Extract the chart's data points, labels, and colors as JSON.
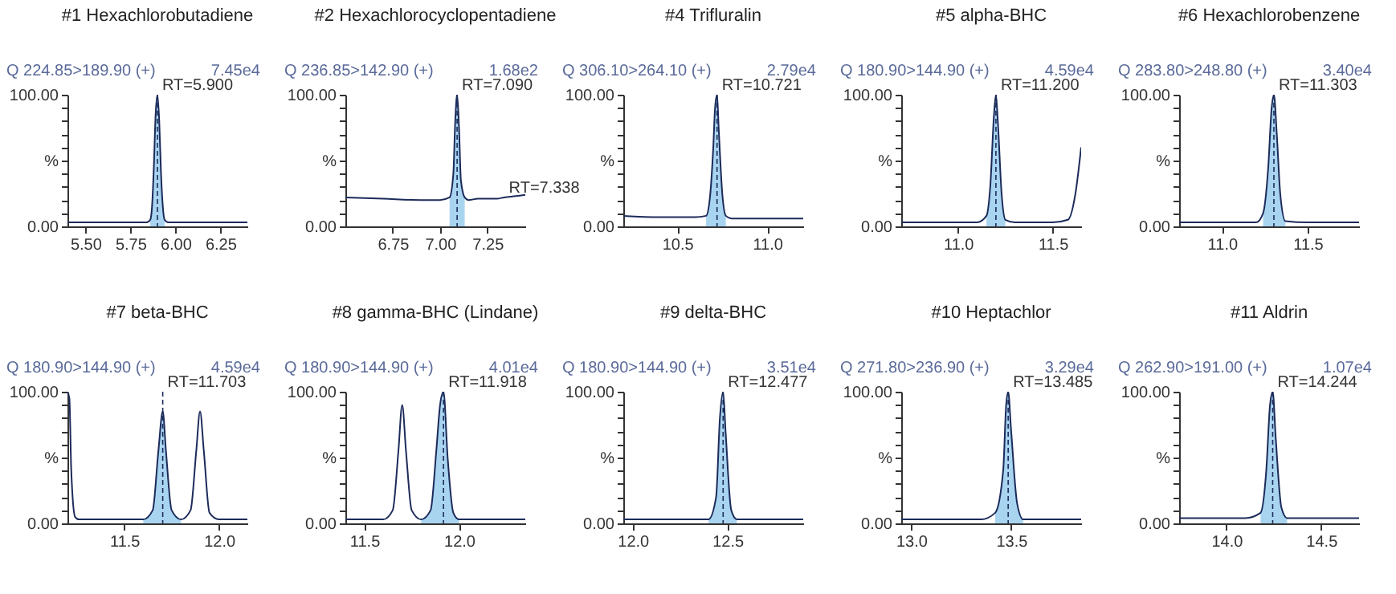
{
  "chart_data": [
    {
      "type": "line",
      "title": "#1 Hexachlorobutadiene",
      "subtitle": "Q 224.85>189.90 (+)",
      "annotations": [
        "7.45e4",
        {
          "text": "RT=5.900",
          "x": 5.9,
          "y": 100
        }
      ],
      "xlim": [
        5.4,
        6.4
      ],
      "xticks": [
        {
          "value": 5.5,
          "label": "5.50"
        },
        {
          "value": 5.75,
          "label": "5.75"
        },
        {
          "value": 6,
          "label": "6.00"
        },
        {
          "value": 6.25,
          "label": "6.25"
        }
      ],
      "ylim": [
        0,
        100
      ],
      "yticks": [
        {
          "value": 0,
          "label": "0.00"
        },
        {
          "value": 10,
          "label": null
        },
        {
          "value": 20,
          "label": null
        },
        {
          "value": 30,
          "label": null
        },
        {
          "value": 40,
          "label": null
        },
        {
          "value": 50,
          "label": "%"
        },
        {
          "value": 60,
          "label": null
        },
        {
          "value": 70,
          "label": null
        },
        {
          "value": 80,
          "label": null
        },
        {
          "value": 90,
          "label": null
        },
        {
          "value": 100,
          "label": "100.00"
        }
      ],
      "series": [
        {
          "type": "area",
          "color": "#a8d4f0",
          "x": [
            5.86,
            5.87,
            5.88,
            5.89,
            5.9,
            5.91,
            5.92,
            5.93,
            5.94
          ],
          "values": [
            5,
            15,
            45,
            85,
            100,
            80,
            40,
            15,
            5
          ]
        },
        {
          "color": "#1c2b5a",
          "x": [
            5.4,
            5.6,
            5.8,
            5.84,
            5.86,
            5.87,
            5.88,
            5.89,
            5.9,
            5.91,
            5.92,
            5.93,
            5.94,
            5.96,
            6.1,
            6.4
          ],
          "values": [
            3,
            3,
            3,
            3,
            5,
            15,
            45,
            85,
            100,
            80,
            40,
            15,
            5,
            3,
            3,
            3
          ]
        }
      ],
      "ref_lines": [
        {
          "axis": "x",
          "value": 5.9,
          "line_style": "dashed",
          "color": "#1c2b5a"
        }
      ]
    },
    {
      "type": "line",
      "title": "#2 Hexachlorocyclopentadiene",
      "subtitle": "Q 236.85>142.90 (+)",
      "annotations": [
        "1.68e2",
        {
          "text": "RT=7.090",
          "x": 7.09,
          "y": 100
        },
        {
          "text": "RT=7.338",
          "x": 7.338,
          "y": 22
        }
      ],
      "xlim": [
        6.5,
        7.45
      ],
      "xticks": [
        {
          "value": 6.75,
          "label": "6.75"
        },
        {
          "value": 7,
          "label": "7.00"
        },
        {
          "value": 7.25,
          "label": "7.25"
        }
      ],
      "ylim": [
        0,
        100
      ],
      "yticks": [
        {
          "value": 0,
          "label": "0.00"
        },
        {
          "value": 10,
          "label": null
        },
        {
          "value": 20,
          "label": null
        },
        {
          "value": 30,
          "label": null
        },
        {
          "value": 40,
          "label": null
        },
        {
          "value": 50,
          "label": "%"
        },
        {
          "value": 60,
          "label": null
        },
        {
          "value": 70,
          "label": null
        },
        {
          "value": 80,
          "label": null
        },
        {
          "value": 90,
          "label": null
        },
        {
          "value": 100,
          "label": "100.00"
        }
      ],
      "series": [
        {
          "type": "area",
          "color": "#a8d4f0",
          "x": [
            7.05,
            7.07,
            7.08,
            7.09,
            7.1,
            7.11,
            7.13
          ],
          "values": [
            22,
            40,
            80,
            100,
            75,
            35,
            22
          ]
        },
        {
          "color": "#1c2b5a",
          "x": [
            6.5,
            6.7,
            6.9,
            7.0,
            7.05,
            7.07,
            7.08,
            7.09,
            7.1,
            7.11,
            7.13,
            7.15,
            7.2,
            7.3,
            7.338,
            7.4,
            7.45
          ],
          "values": [
            22,
            21,
            20,
            20,
            22,
            40,
            80,
            100,
            75,
            35,
            22,
            20,
            21,
            21,
            22,
            23,
            24
          ]
        }
      ],
      "ref_lines": [
        {
          "axis": "x",
          "value": 7.09,
          "line_style": "dashed",
          "color": "#1c2b5a"
        }
      ]
    },
    {
      "type": "line",
      "title": "#4 Trifluralin",
      "subtitle": "Q 306.10>264.10 (+)",
      "annotations": [
        "2.79e4",
        {
          "text": "RT=10.721",
          "x": 10.721,
          "y": 100
        }
      ],
      "xlim": [
        10.2,
        11.2
      ],
      "xticks": [
        {
          "value": 10.5,
          "label": "10.5"
        },
        {
          "value": 11,
          "label": "11.0"
        }
      ],
      "ylim": [
        0,
        100
      ],
      "yticks": [
        {
          "value": 0,
          "label": "0.00"
        },
        {
          "value": 10,
          "label": null
        },
        {
          "value": 20,
          "label": null
        },
        {
          "value": 30,
          "label": null
        },
        {
          "value": 40,
          "label": null
        },
        {
          "value": 50,
          "label": "%"
        },
        {
          "value": 60,
          "label": null
        },
        {
          "value": 70,
          "label": null
        },
        {
          "value": 80,
          "label": null
        },
        {
          "value": 90,
          "label": null
        },
        {
          "value": 100,
          "label": "100.00"
        }
      ],
      "series": [
        {
          "type": "area",
          "color": "#a8d4f0",
          "x": [
            10.66,
            10.68,
            10.7,
            10.71,
            10.721,
            10.73,
            10.75,
            10.77
          ],
          "values": [
            8,
            20,
            60,
            90,
            100,
            75,
            25,
            8
          ]
        },
        {
          "color": "#1c2b5a",
          "x": [
            10.2,
            10.4,
            10.6,
            10.66,
            10.68,
            10.7,
            10.71,
            10.721,
            10.73,
            10.75,
            10.77,
            10.8,
            11.0,
            11.2
          ],
          "values": [
            8,
            7,
            7,
            8,
            20,
            60,
            90,
            100,
            75,
            25,
            8,
            6,
            6,
            6
          ]
        }
      ],
      "ref_lines": [
        {
          "axis": "x",
          "value": 10.721,
          "line_style": "dashed",
          "color": "#1c2b5a"
        }
      ]
    },
    {
      "type": "line",
      "title": "#5 alpha-BHC",
      "subtitle": "Q 180.90>144.90 (+)",
      "annotations": [
        "4.59e4",
        {
          "text": "RT=11.200",
          "x": 11.2,
          "y": 100
        }
      ],
      "xlim": [
        10.7,
        11.65
      ],
      "xticks": [
        {
          "value": 11,
          "label": "11.0"
        },
        {
          "value": 11.5,
          "label": "11.5"
        }
      ],
      "ylim": [
        0,
        100
      ],
      "yticks": [
        {
          "value": 0,
          "label": "0.00"
        },
        {
          "value": 10,
          "label": null
        },
        {
          "value": 20,
          "label": null
        },
        {
          "value": 30,
          "label": null
        },
        {
          "value": 40,
          "label": null
        },
        {
          "value": 50,
          "label": "%"
        },
        {
          "value": 60,
          "label": null
        },
        {
          "value": 70,
          "label": null
        },
        {
          "value": 80,
          "label": null
        },
        {
          "value": 90,
          "label": null
        },
        {
          "value": 100,
          "label": "100.00"
        }
      ],
      "series": [
        {
          "type": "area",
          "color": "#a8d4f0",
          "x": [
            11.15,
            11.17,
            11.19,
            11.2,
            11.21,
            11.23,
            11.25
          ],
          "values": [
            8,
            30,
            85,
            100,
            80,
            25,
            5
          ]
        },
        {
          "color": "#1c2b5a",
          "x": [
            10.7,
            11.0,
            11.1,
            11.15,
            11.17,
            11.19,
            11.2,
            11.21,
            11.23,
            11.25,
            11.3,
            11.5,
            11.58,
            11.62,
            11.65
          ],
          "values": [
            3,
            3,
            3,
            8,
            30,
            85,
            100,
            80,
            25,
            5,
            3,
            3,
            5,
            25,
            60
          ]
        }
      ],
      "ref_lines": [
        {
          "axis": "x",
          "value": 11.2,
          "line_style": "dashed",
          "color": "#1c2b5a"
        }
      ]
    },
    {
      "type": "line",
      "title": "#6 Hexachlorobenzene",
      "subtitle": "Q 283.80>248.80 (+)",
      "annotations": [
        "3.40e4",
        {
          "text": "RT=11.303",
          "x": 11.303,
          "y": 100
        }
      ],
      "xlim": [
        10.75,
        11.8
      ],
      "xticks": [
        {
          "value": 11,
          "label": "11.0"
        },
        {
          "value": 11.5,
          "label": "11.5"
        }
      ],
      "ylim": [
        0,
        100
      ],
      "yticks": [
        {
          "value": 0,
          "label": "0.00"
        },
        {
          "value": 10,
          "label": null
        },
        {
          "value": 20,
          "label": null
        },
        {
          "value": 30,
          "label": null
        },
        {
          "value": 40,
          "label": null
        },
        {
          "value": 50,
          "label": "%"
        },
        {
          "value": 60,
          "label": null
        },
        {
          "value": 70,
          "label": null
        },
        {
          "value": 80,
          "label": null
        },
        {
          "value": 90,
          "label": null
        },
        {
          "value": 100,
          "label": "100.00"
        }
      ],
      "series": [
        {
          "type": "area",
          "color": "#a8d4f0",
          "x": [
            11.24,
            11.27,
            11.29,
            11.303,
            11.32,
            11.34,
            11.37
          ],
          "values": [
            10,
            45,
            90,
            100,
            70,
            25,
            4
          ]
        },
        {
          "color": "#1c2b5a",
          "x": [
            10.75,
            11.1,
            11.2,
            11.24,
            11.27,
            11.29,
            11.303,
            11.32,
            11.34,
            11.37,
            11.5,
            11.8
          ],
          "values": [
            3,
            3,
            3,
            10,
            45,
            90,
            100,
            70,
            25,
            4,
            3,
            3
          ]
        }
      ],
      "ref_lines": [
        {
          "axis": "x",
          "value": 11.303,
          "line_style": "dashed",
          "color": "#1c2b5a"
        }
      ]
    },
    {
      "type": "line",
      "title": "#7 beta-BHC",
      "subtitle": "Q 180.90>144.90 (+)",
      "annotations": [
        "4.59e4",
        {
          "text": "RT=11.703",
          "x": 11.703,
          "y": 100
        }
      ],
      "xlim": [
        11.2,
        12.15
      ],
      "xticks": [
        {
          "value": 11.5,
          "label": "11.5"
        },
        {
          "value": 12,
          "label": "12.0"
        }
      ],
      "ylim": [
        0,
        100
      ],
      "yticks": [
        {
          "value": 0,
          "label": "0.00"
        },
        {
          "value": 10,
          "label": null
        },
        {
          "value": 20,
          "label": null
        },
        {
          "value": 30,
          "label": null
        },
        {
          "value": 40,
          "label": null
        },
        {
          "value": 50,
          "label": "%"
        },
        {
          "value": 60,
          "label": null
        },
        {
          "value": 70,
          "label": null
        },
        {
          "value": 80,
          "label": null
        },
        {
          "value": 90,
          "label": null
        },
        {
          "value": 100,
          "label": "100.00"
        }
      ],
      "series": [
        {
          "type": "area",
          "color": "#a8d4f0",
          "x": [
            11.6,
            11.65,
            11.68,
            11.703,
            11.72,
            11.75,
            11.8
          ],
          "values": [
            3,
            10,
            55,
            85,
            55,
            10,
            3
          ]
        },
        {
          "color": "#1c2b5a",
          "x": [
            11.2,
            11.21,
            11.22,
            11.24,
            11.26,
            11.3,
            11.6,
            11.65,
            11.68,
            11.703,
            11.72,
            11.75,
            11.8,
            11.85,
            11.88,
            11.9,
            11.92,
            11.95,
            12.0,
            12.15
          ],
          "values": [
            100,
            95,
            40,
            5,
            3,
            3,
            3,
            10,
            55,
            85,
            55,
            10,
            3,
            10,
            55,
            85,
            55,
            8,
            3,
            3
          ]
        }
      ],
      "ref_lines": [
        {
          "axis": "x",
          "value": 11.703,
          "line_style": "dashed",
          "color": "#1c2b5a"
        }
      ]
    },
    {
      "type": "line",
      "title": "#8 gamma-BHC (Lindane)",
      "subtitle": "Q 180.90>144.90 (+)",
      "annotations": [
        "4.01e4",
        {
          "text": "RT=11.918",
          "x": 11.918,
          "y": 100
        }
      ],
      "xlim": [
        11.4,
        12.35
      ],
      "xticks": [
        {
          "value": 11.5,
          "label": "11.5"
        },
        {
          "value": 12,
          "label": "12.0"
        }
      ],
      "ylim": [
        0,
        100
      ],
      "yticks": [
        {
          "value": 0,
          "label": "0.00"
        },
        {
          "value": 10,
          "label": null
        },
        {
          "value": 20,
          "label": null
        },
        {
          "value": 30,
          "label": null
        },
        {
          "value": 40,
          "label": null
        },
        {
          "value": 50,
          "label": "%"
        },
        {
          "value": 60,
          "label": null
        },
        {
          "value": 70,
          "label": null
        },
        {
          "value": 80,
          "label": null
        },
        {
          "value": 90,
          "label": null
        },
        {
          "value": 100,
          "label": "100.00"
        }
      ],
      "series": [
        {
          "type": "area",
          "color": "#a8d4f0",
          "x": [
            11.8,
            11.85,
            11.88,
            11.9,
            11.918,
            11.94,
            11.97,
            12.0
          ],
          "values": [
            3,
            10,
            55,
            90,
            100,
            50,
            8,
            3
          ]
        },
        {
          "color": "#1c2b5a",
          "x": [
            11.4,
            11.6,
            11.65,
            11.68,
            11.7,
            11.72,
            11.75,
            11.8,
            11.85,
            11.88,
            11.9,
            11.918,
            11.94,
            11.97,
            12.0,
            12.35
          ],
          "values": [
            3,
            3,
            10,
            55,
            90,
            55,
            10,
            3,
            10,
            55,
            90,
            100,
            50,
            8,
            3,
            3
          ]
        }
      ],
      "ref_lines": [
        {
          "axis": "x",
          "value": 11.918,
          "line_style": "dashed",
          "color": "#1c2b5a"
        }
      ]
    },
    {
      "type": "line",
      "title": "#9 delta-BHC",
      "subtitle": "Q 180.90>144.90 (+)",
      "annotations": [
        "3.51e4",
        {
          "text": "RT=12.477",
          "x": 12.477,
          "y": 100
        }
      ],
      "xlim": [
        11.95,
        12.9
      ],
      "xticks": [
        {
          "value": 12,
          "label": "12.0"
        },
        {
          "value": 12.5,
          "label": "12.5"
        }
      ],
      "ylim": [
        0,
        100
      ],
      "yticks": [
        {
          "value": 0,
          "label": "0.00"
        },
        {
          "value": 10,
          "label": null
        },
        {
          "value": 20,
          "label": null
        },
        {
          "value": 30,
          "label": null
        },
        {
          "value": 40,
          "label": null
        },
        {
          "value": 50,
          "label": "%"
        },
        {
          "value": 60,
          "label": null
        },
        {
          "value": 70,
          "label": null
        },
        {
          "value": 80,
          "label": null
        },
        {
          "value": 90,
          "label": null
        },
        {
          "value": 100,
          "label": "100.00"
        }
      ],
      "series": [
        {
          "type": "area",
          "color": "#a8d4f0",
          "x": [
            12.4,
            12.44,
            12.46,
            12.477,
            12.49,
            12.52,
            12.55
          ],
          "values": [
            3,
            20,
            80,
            100,
            70,
            10,
            3
          ]
        },
        {
          "color": "#1c2b5a",
          "x": [
            11.95,
            12.3,
            12.4,
            12.44,
            12.46,
            12.477,
            12.49,
            12.52,
            12.55,
            12.7,
            12.9
          ],
          "values": [
            3,
            3,
            3,
            20,
            80,
            100,
            70,
            10,
            3,
            3,
            3
          ]
        }
      ],
      "ref_lines": [
        {
          "axis": "x",
          "value": 12.477,
          "line_style": "dashed",
          "color": "#1c2b5a"
        }
      ]
    },
    {
      "type": "line",
      "title": "#10 Heptachlor",
      "subtitle": "Q 271.80>236.90 (+)",
      "annotations": [
        "3.29e4",
        {
          "text": "RT=13.485",
          "x": 13.485,
          "y": 100
        }
      ],
      "xlim": [
        12.95,
        13.85
      ],
      "xticks": [
        {
          "value": 13,
          "label": "13.0"
        },
        {
          "value": 13.5,
          "label": "13.5"
        }
      ],
      "ylim": [
        0,
        100
      ],
      "yticks": [
        {
          "value": 0,
          "label": "0.00"
        },
        {
          "value": 10,
          "label": null
        },
        {
          "value": 20,
          "label": null
        },
        {
          "value": 30,
          "label": null
        },
        {
          "value": 40,
          "label": null
        },
        {
          "value": 50,
          "label": "%"
        },
        {
          "value": 60,
          "label": null
        },
        {
          "value": 70,
          "label": null
        },
        {
          "value": 80,
          "label": null
        },
        {
          "value": 90,
          "label": null
        },
        {
          "value": 100,
          "label": "100.00"
        }
      ],
      "series": [
        {
          "type": "area",
          "color": "#a8d4f0",
          "x": [
            13.42,
            13.46,
            13.475,
            13.485,
            13.5,
            13.53,
            13.56
          ],
          "values": [
            8,
            40,
            90,
            100,
            70,
            15,
            3
          ]
        },
        {
          "color": "#1c2b5a",
          "x": [
            12.95,
            13.35,
            13.42,
            13.46,
            13.475,
            13.485,
            13.5,
            13.53,
            13.56,
            13.85
          ],
          "values": [
            3,
            3,
            8,
            40,
            90,
            100,
            70,
            15,
            3,
            3
          ]
        }
      ],
      "ref_lines": [
        {
          "axis": "x",
          "value": 13.485,
          "line_style": "dashed",
          "color": "#1c2b5a"
        }
      ]
    },
    {
      "type": "line",
      "title": "#11 Aldrin",
      "subtitle": "Q 262.90>191.00 (+)",
      "annotations": [
        "1.07e4",
        {
          "text": "RT=14.244",
          "x": 14.244,
          "y": 100
        }
      ],
      "xlim": [
        13.75,
        14.7
      ],
      "xticks": [
        {
          "value": 14,
          "label": "14.0"
        },
        {
          "value": 14.5,
          "label": "14.5"
        }
      ],
      "ylim": [
        0,
        100
      ],
      "yticks": [
        {
          "value": 0,
          "label": "0.00"
        },
        {
          "value": 10,
          "label": null
        },
        {
          "value": 20,
          "label": null
        },
        {
          "value": 30,
          "label": null
        },
        {
          "value": 40,
          "label": null
        },
        {
          "value": 50,
          "label": "%"
        },
        {
          "value": 60,
          "label": null
        },
        {
          "value": 70,
          "label": null
        },
        {
          "value": 80,
          "label": null
        },
        {
          "value": 90,
          "label": null
        },
        {
          "value": 100,
          "label": "100.00"
        }
      ],
      "series": [
        {
          "type": "area",
          "color": "#a8d4f0",
          "x": [
            14.18,
            14.21,
            14.23,
            14.244,
            14.26,
            14.29,
            14.32
          ],
          "values": [
            8,
            40,
            90,
            100,
            65,
            12,
            4
          ]
        },
        {
          "color": "#1c2b5a",
          "x": [
            13.75,
            14.1,
            14.18,
            14.21,
            14.23,
            14.244,
            14.26,
            14.29,
            14.32,
            14.7
          ],
          "values": [
            4,
            4,
            8,
            40,
            90,
            100,
            65,
            12,
            4,
            4
          ]
        }
      ],
      "ref_lines": [
        {
          "axis": "x",
          "value": 14.244,
          "line_style": "dashed",
          "color": "#1c2b5a"
        }
      ]
    }
  ]
}
